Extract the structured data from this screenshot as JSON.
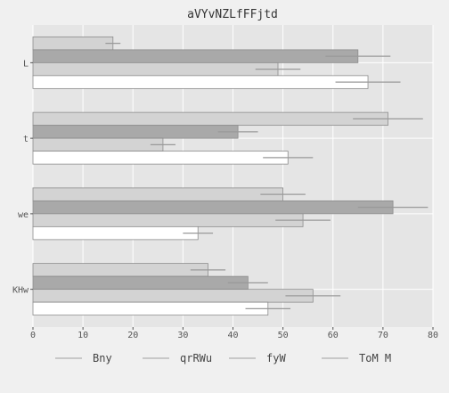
{
  "chart_data": {
    "type": "bar",
    "orientation": "horizontal",
    "title": "aVYvNZLfFFjtd",
    "xlabel": "",
    "ylabel": "",
    "categories": [
      "L",
      "t",
      "we",
      "KHw"
    ],
    "xlim": [
      0,
      80
    ],
    "xticks": [
      0,
      10,
      20,
      30,
      40,
      50,
      60,
      70,
      80
    ],
    "grid": true,
    "legend_position": "bottom",
    "series": [
      {
        "name": "Bny",
        "values": [
          16,
          71,
          50,
          35
        ],
        "errors": [
          1.5,
          7,
          4.5,
          3.5
        ],
        "color": "#d3d3d3"
      },
      {
        "name": "qrRWu",
        "values": [
          65,
          41,
          72,
          43
        ],
        "errors": [
          6.5,
          4,
          7,
          4
        ],
        "color": "#a9a9a9"
      },
      {
        "name": "fyW",
        "values": [
          49,
          26,
          54,
          56
        ],
        "errors": [
          4.5,
          2.5,
          5.5,
          5.5
        ],
        "color": "#d3d3d3"
      },
      {
        "name": "ToM M",
        "values": [
          67,
          51,
          33,
          47
        ],
        "errors": [
          6.5,
          5,
          3,
          4.5
        ],
        "color": "#ffffff"
      }
    ]
  }
}
